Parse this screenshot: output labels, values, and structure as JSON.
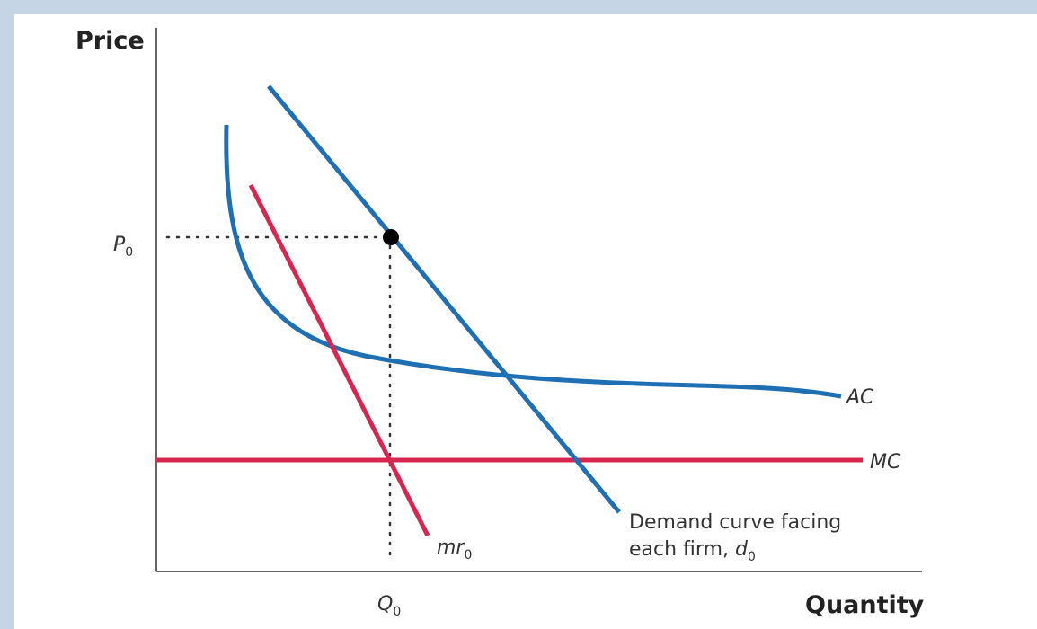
{
  "axes": {
    "y_title": "Price",
    "x_title": "Quantity"
  },
  "labels": {
    "p_main": "P",
    "p_sub": "0",
    "q_main": "Q",
    "q_sub": "0",
    "ac": "AC",
    "mc": "MC",
    "mr_main": "mr",
    "mr_sub": "0",
    "demand_line1": "Demand curve facing",
    "demand_line2": "each firm, ",
    "demand_var": "d",
    "demand_sub": "0"
  },
  "colors": {
    "blue": "#1f6fb4",
    "red": "#d9264f",
    "axis": "#333333",
    "frame_bg": "#c5d5e6"
  }
}
